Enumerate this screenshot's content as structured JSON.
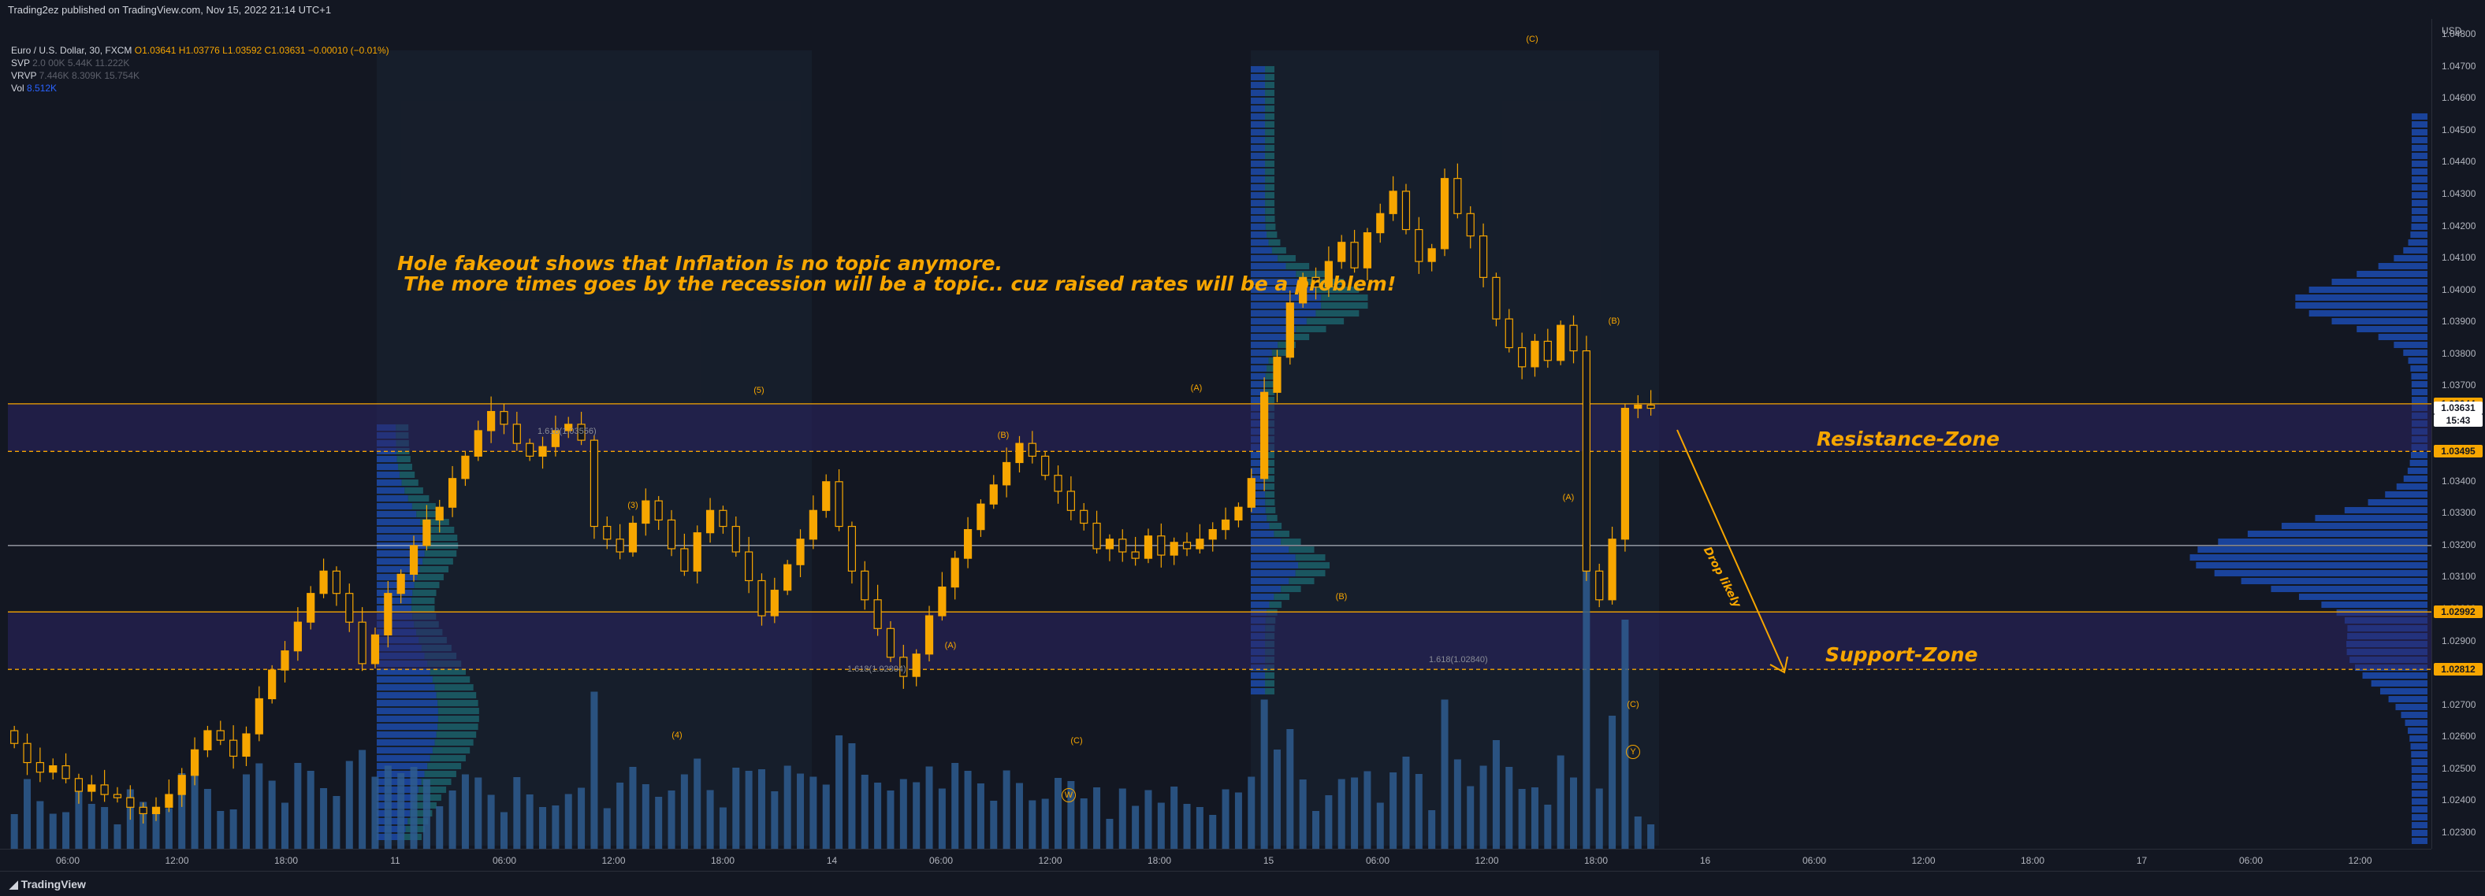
{
  "header": {
    "publish_line": "Trading2ez published on TradingView.com, Nov 15, 2022 21:14 UTC+1"
  },
  "legend": {
    "symbol": "Euro / U.S. Dollar, 30, FXCM",
    "ohlc": "O1.03641  H1.03776  L1.03592  C1.03631  −0.00010 (−0.01%)",
    "svp_label": "SVP",
    "svp_values": "2.0 00K   5.44K   11.222K",
    "vrvp_label": "VRVP",
    "vrvp_values": "7.446K   8.309K   15.754K",
    "vol_label": "Vol",
    "vol_value": "8.512K"
  },
  "price_axis": {
    "currency": "USD",
    "ticks": [
      "1.04800",
      "1.04700",
      "1.04600",
      "1.04500",
      "1.04400",
      "1.04300",
      "1.04200",
      "1.04100",
      "1.04000",
      "1.03900",
      "1.03800",
      "1.03700",
      "1.03600",
      "1.03500",
      "1.03400",
      "1.03300",
      "1.03200",
      "1.03100",
      "1.03000",
      "1.02900",
      "1.02800",
      "1.02700",
      "1.02600",
      "1.02500",
      "1.02400",
      "1.02300"
    ],
    "tags": [
      {
        "text": "1.03644",
        "bg": "#f7a600",
        "fg": "#131722"
      },
      {
        "text": "1.03631",
        "bg": "#ffffff",
        "fg": "#131722"
      },
      {
        "text": "15:43",
        "bg": "#ffffff",
        "fg": "#131722"
      },
      {
        "text": "1.03495",
        "bg": "#f7a600",
        "fg": "#131722"
      },
      {
        "text": "1.02992",
        "bg": "#f7a600",
        "fg": "#131722"
      },
      {
        "text": "1.02812",
        "bg": "#f7a600",
        "fg": "#131722"
      }
    ]
  },
  "time_axis": {
    "ticks": [
      "06:00",
      "12:00",
      "18:00",
      "11",
      "06:00",
      "12:00",
      "18:00",
      "14",
      "06:00",
      "12:00",
      "18:00",
      "15",
      "06:00",
      "12:00",
      "18:00",
      "16",
      "06:00",
      "12:00",
      "18:00",
      "17",
      "06:00",
      "12:00"
    ]
  },
  "annotations": {
    "headline_1": "Hole fakeout shows that Inflation is no topic anymore.",
    "headline_2": "The more times goes by the recession will be a topic.. cuz raised rates will be a problem!",
    "resistance": "Resistance-Zone",
    "support": "Support-Zone",
    "drop": "Drop likely"
  },
  "waves": [
    "(5)",
    "(3)",
    "(4)",
    "(B)",
    "(A)",
    "(C)",
    "W",
    "(A)",
    "(B)",
    "(C)",
    "(B)",
    "(A)",
    "(C)",
    "Y"
  ],
  "fibs": [
    "1.618(1.03556)",
    "1.618(1.02804)",
    "1.618(1.02840)"
  ],
  "footer": {
    "brand": "TradingView"
  },
  "colors": {
    "bull": "#f7a600",
    "bear": "#f7a600",
    "zone": "#2b2464",
    "profile_blue": "#1e53c4",
    "profile_teal": "#1d6e77",
    "volume": "#2e5c8f"
  },
  "chart_data": {
    "type": "candlestick",
    "symbol": "EUR/USD",
    "timeframe": "30",
    "ylim": [
      1.0225,
      1.0485
    ],
    "resistance_zone": [
      1.03495,
      1.03644
    ],
    "support_zone": [
      1.02812,
      1.02992
    ],
    "close": [
      1.0258,
      1.0252,
      1.0249,
      1.0251,
      1.0247,
      1.0243,
      1.0245,
      1.0242,
      1.0241,
      1.0238,
      1.0236,
      1.0238,
      1.0242,
      1.0248,
      1.0256,
      1.0262,
      1.0259,
      1.0254,
      1.0261,
      1.0272,
      1.0281,
      1.0287,
      1.0296,
      1.0305,
      1.0312,
      1.0305,
      1.0296,
      1.0283,
      1.0292,
      1.0305,
      1.0311,
      1.032,
      1.0328,
      1.0332,
      1.0341,
      1.0348,
      1.0356,
      1.0362,
      1.0358,
      1.0352,
      1.0348,
      1.0351,
      1.0356,
      1.0358,
      1.0353,
      1.0326,
      1.0322,
      1.0318,
      1.0327,
      1.0334,
      1.0328,
      1.0319,
      1.0312,
      1.0324,
      1.0331,
      1.0326,
      1.0318,
      1.0309,
      1.0298,
      1.0306,
      1.0314,
      1.0322,
      1.0331,
      1.034,
      1.0326,
      1.0312,
      1.0303,
      1.0294,
      1.0285,
      1.0279,
      1.0286,
      1.0298,
      1.0307,
      1.0316,
      1.0325,
      1.0333,
      1.0339,
      1.0346,
      1.0352,
      1.0348,
      1.0342,
      1.0337,
      1.0331,
      1.0327,
      1.0319,
      1.0322,
      1.0318,
      1.0316,
      1.0323,
      1.0317,
      1.0321,
      1.0319,
      1.0322,
      1.0325,
      1.0328,
      1.0332,
      1.0341,
      1.0368,
      1.0379,
      1.0396,
      1.0404,
      1.0401,
      1.0409,
      1.0415,
      1.0407,
      1.0418,
      1.0424,
      1.0431,
      1.0419,
      1.0409,
      1.0413,
      1.0435,
      1.0424,
      1.0417,
      1.0404,
      1.0391,
      1.0382,
      1.0376,
      1.0384,
      1.0378,
      1.0389,
      1.0381,
      1.0312,
      1.0303,
      1.0322,
      1.0363,
      1.0364,
      1.0363
    ]
  }
}
